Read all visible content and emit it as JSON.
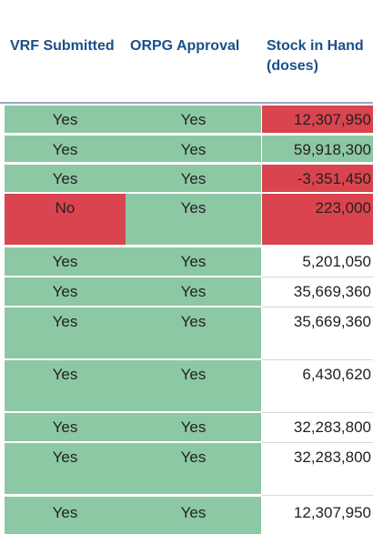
{
  "table": {
    "headers": {
      "vrf": "VRF Submitted",
      "orpg": "ORPG Approval",
      "stock_line1": "Stock in Hand",
      "stock_line2": "(doses)"
    },
    "rows": [
      {
        "vrf": "Yes",
        "orpg": "Yes",
        "stock": "12,307,950"
      },
      {
        "vrf": "Yes",
        "orpg": "Yes",
        "stock": "59,918,300"
      },
      {
        "vrf": "Yes",
        "orpg": "Yes",
        "stock": "-3,351,450"
      },
      {
        "vrf": "No",
        "orpg": "Yes",
        "stock": "223,000"
      },
      {
        "vrf": "Yes",
        "orpg": "Yes",
        "stock": "5,201,050"
      },
      {
        "vrf": "Yes",
        "orpg": "Yes",
        "stock": "35,669,360"
      },
      {
        "vrf": "Yes",
        "orpg": "Yes",
        "stock": "35,669,360"
      },
      {
        "vrf": "Yes",
        "orpg": "Yes",
        "stock": "6,430,620"
      },
      {
        "vrf": "Yes",
        "orpg": "Yes",
        "stock": "32,283,800"
      },
      {
        "vrf": "Yes",
        "orpg": "Yes",
        "stock": "32,283,800"
      },
      {
        "vrf": "Yes",
        "orpg": "Yes",
        "stock": "12,307,950"
      }
    ]
  },
  "colors": {
    "good": "#8dc8a4",
    "bad": "#d9444e",
    "header_text": "#1b4f8a"
  }
}
